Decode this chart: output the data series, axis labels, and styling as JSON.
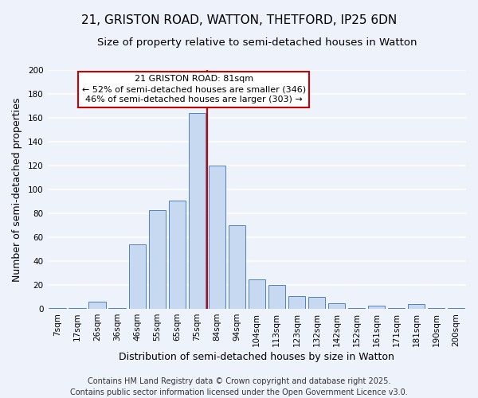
{
  "title": "21, GRISTON ROAD, WATTON, THETFORD, IP25 6DN",
  "subtitle": "Size of property relative to semi-detached houses in Watton",
  "xlabel": "Distribution of semi-detached houses by size in Watton",
  "ylabel": "Number of semi-detached properties",
  "bin_labels": [
    "7sqm",
    "17sqm",
    "26sqm",
    "36sqm",
    "46sqm",
    "55sqm",
    "65sqm",
    "75sqm",
    "84sqm",
    "94sqm",
    "104sqm",
    "113sqm",
    "123sqm",
    "132sqm",
    "142sqm",
    "152sqm",
    "161sqm",
    "171sqm",
    "181sqm",
    "190sqm",
    "200sqm"
  ],
  "bar_values": [
    1,
    1,
    6,
    1,
    54,
    83,
    91,
    164,
    120,
    70,
    25,
    20,
    11,
    10,
    5,
    1,
    3,
    1,
    4,
    1,
    1
  ],
  "bar_color": "#c6d9f1",
  "bar_edge_color": "#4f81bd",
  "vline_x_idx": 7,
  "vline_color": "#cc0000",
  "annotation_title": "21 GRISTON ROAD: 81sqm",
  "annotation_line1": "← 52% of semi-detached houses are smaller (346)",
  "annotation_line2": "46% of semi-detached houses are larger (303) →",
  "annotation_box_color": "#ffffff",
  "annotation_box_edge": "#cc0000",
  "ylim": [
    0,
    200
  ],
  "yticks": [
    0,
    20,
    40,
    60,
    80,
    100,
    120,
    140,
    160,
    180,
    200
  ],
  "footer1": "Contains HM Land Registry data © Crown copyright and database right 2025.",
  "footer2": "Contains public sector information licensed under the Open Government Licence v3.0.",
  "background_color": "#eef2fb",
  "grid_color": "#ffffff",
  "title_fontsize": 11,
  "subtitle_fontsize": 9.5,
  "xlabel_fontsize": 9,
  "ylabel_fontsize": 9,
  "tick_fontsize": 7.5,
  "footer_fontsize": 7,
  "annotation_fontsize": 8
}
